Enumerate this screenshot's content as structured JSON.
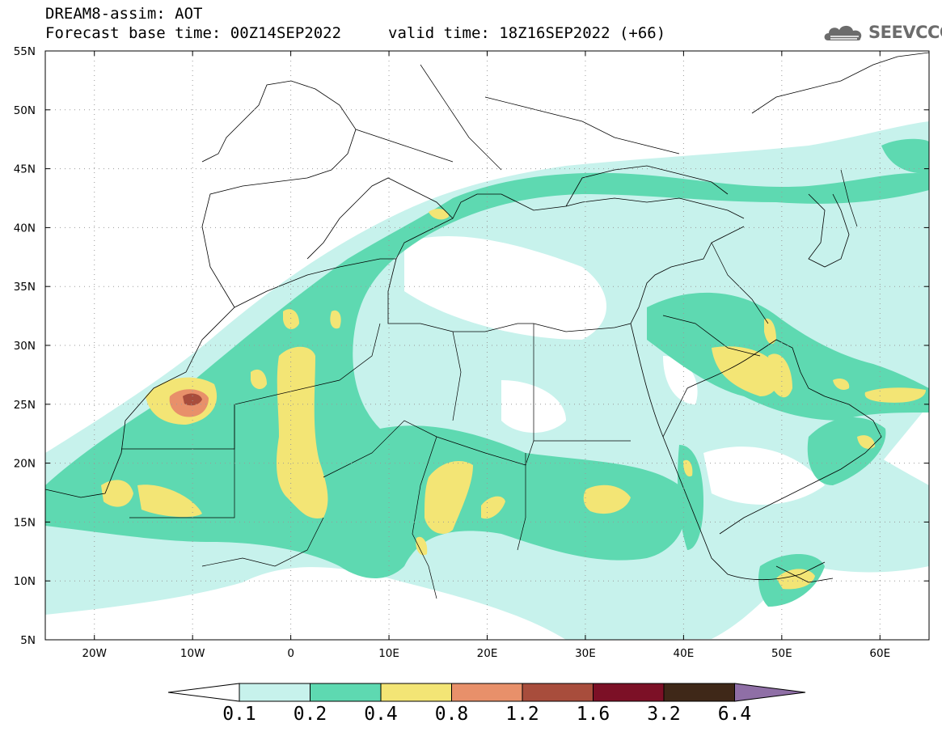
{
  "header": {
    "title": "DREAM8-assim: AOT",
    "base_time": "Forecast base time: 00Z14SEP2022",
    "valid_time": "valid time: 18Z16SEP2022 (+66)"
  },
  "logo": {
    "text": "SEEVCCC",
    "icon": "cloud-logo-icon"
  },
  "map": {
    "lon_range": [
      -25,
      65
    ],
    "lat_range": [
      5,
      55
    ],
    "lon_tick_labels": [
      "20W",
      "10W",
      "0",
      "10E",
      "20E",
      "30E",
      "40E",
      "50E",
      "60E"
    ],
    "lat_tick_labels": [
      "5N",
      "10N",
      "15N",
      "20N",
      "25N",
      "30N",
      "35N",
      "40N",
      "45N",
      "50N",
      "55N"
    ],
    "grid": "dotted"
  },
  "colorbar": {
    "colors": [
      "#ffffff",
      "#c7f2ec",
      "#5ed9b1",
      "#f3e575",
      "#e8906a",
      "#a84d3c",
      "#7c1026",
      "#3f2818",
      "#8f6fa6"
    ],
    "labels": [
      "0.1",
      "0.2",
      "0.4",
      "0.8",
      "1.2",
      "1.6",
      "3.2",
      "6.4"
    ]
  }
}
